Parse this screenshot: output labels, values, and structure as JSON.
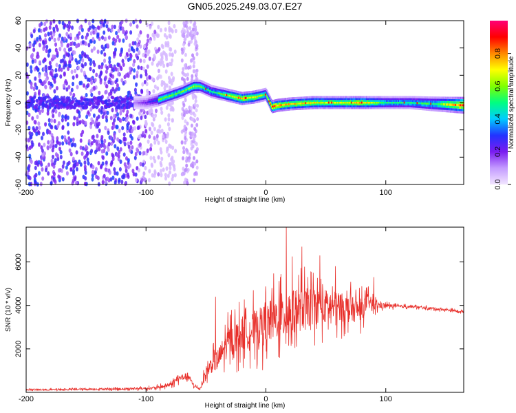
{
  "title": "GN05.2025.249.03.07.E27",
  "chart_data": [
    {
      "type": "heatmap",
      "xlabel": "Height of straight line (km)",
      "ylabel": "Frequency (Hz)",
      "xlim": [
        -200,
        165
      ],
      "ylim": [
        -60,
        60
      ],
      "x_ticks": [
        -200,
        -100,
        0,
        100
      ],
      "y_ticks": [
        60,
        40,
        20,
        0,
        -20,
        -40,
        -60
      ],
      "y_tick_labels": [
        "60",
        "40",
        "20",
        "0",
        "-20",
        "-40",
        "-60"
      ],
      "colorbar": {
        "label": "Normalized spectral amplitude",
        "range": [
          0,
          1
        ],
        "ticks": [
          0.0,
          0.2,
          0.4,
          0.6,
          0.8
        ],
        "tick_labels": [
          "0.0",
          "0.2",
          "0.4",
          "0.6",
          "0.8"
        ],
        "colors": [
          "#f2e6ff",
          "#c49bff",
          "#7a1cf0",
          "#2233ff",
          "#00ccff",
          "#00ff80",
          "#80ff00",
          "#ffff00",
          "#ff8800",
          "#ff0000",
          "#ff0077"
        ]
      },
      "ridge": {
        "x": [
          -110,
          -100,
          -90,
          -80,
          -70,
          -60,
          -55,
          -50,
          -45,
          -40,
          -30,
          -20,
          -10,
          0,
          5,
          10,
          20,
          40,
          60,
          80,
          100,
          120,
          140,
          165
        ],
        "freq": [
          0,
          0,
          2,
          5,
          8,
          12,
          12,
          10,
          8,
          7,
          5,
          3,
          4,
          6,
          -3,
          -2,
          -1,
          0,
          0,
          0,
          0,
          0,
          -1,
          -2
        ],
        "amplitude": [
          0.2,
          0.35,
          0.55,
          0.55,
          0.55,
          0.6,
          0.55,
          0.5,
          0.45,
          0.5,
          0.65,
          0.75,
          0.7,
          0.55,
          0.85,
          0.8,
          0.7,
          0.7,
          0.65,
          0.75,
          0.5,
          0.5,
          0.5,
          0.85
        ]
      },
      "noise_region_x": [
        -200,
        -90
      ],
      "noise_band_x": [
        -70,
        -57
      ]
    },
    {
      "type": "line",
      "xlabel": "Height of straight line (km)",
      "ylabel": "SNR (10 * v/v)",
      "xlim": [
        -200,
        165
      ],
      "ylim": [
        0,
        7600
      ],
      "x_ticks": [
        -200,
        -100,
        0,
        100
      ],
      "y_ticks": [
        2000,
        4000,
        6000
      ],
      "series": [
        {
          "color": "#e8302b",
          "x": [
            -200,
            -180,
            -160,
            -140,
            -120,
            -100,
            -90,
            -80,
            -75,
            -70,
            -65,
            -60,
            -55,
            -50,
            -45,
            -40,
            -35,
            -30,
            -25,
            -20,
            -15,
            -10,
            -5,
            0,
            5,
            10,
            15,
            20,
            25,
            30,
            35,
            40,
            45,
            50,
            55,
            60,
            65,
            70,
            75,
            80,
            85,
            90,
            95,
            100,
            110,
            120,
            130,
            140,
            150,
            165
          ],
          "base": [
            120,
            120,
            140,
            150,
            160,
            180,
            220,
            350,
            550,
            700,
            750,
            300,
            150,
            900,
            1300,
            1500,
            2000,
            2400,
            2500,
            2700,
            2800,
            2900,
            3000,
            3100,
            3300,
            3500,
            3500,
            3600,
            3700,
            3800,
            3900,
            3950,
            3950,
            3950,
            3950,
            3900,
            3900,
            3800,
            3800,
            3800,
            4200,
            4000,
            4000,
            4000,
            3950,
            3950,
            3900,
            3850,
            3800,
            3700
          ],
          "amplitude": [
            60,
            60,
            70,
            80,
            90,
            100,
            150,
            200,
            250,
            300,
            300,
            150,
            100,
            600,
            800,
            1000,
            1200,
            1400,
            1500,
            1600,
            1600,
            1700,
            1800,
            1900,
            2000,
            2000,
            2200,
            2100,
            2000,
            1900,
            1800,
            1700,
            1600,
            1600,
            1500,
            1400,
            1300,
            1200,
            1100,
            1000,
            700,
            500,
            300,
            200,
            120,
            120,
            110,
            110,
            110,
            110
          ],
          "peak_points": [
            [
              17,
              7600
            ],
            [
              30,
              6700
            ],
            [
              45,
              6300
            ],
            [
              22,
              6250
            ],
            [
              58,
              5800
            ],
            [
              90,
              5300
            ],
            [
              -42,
              4400
            ],
            [
              0,
              4600
            ]
          ]
        }
      ]
    }
  ]
}
